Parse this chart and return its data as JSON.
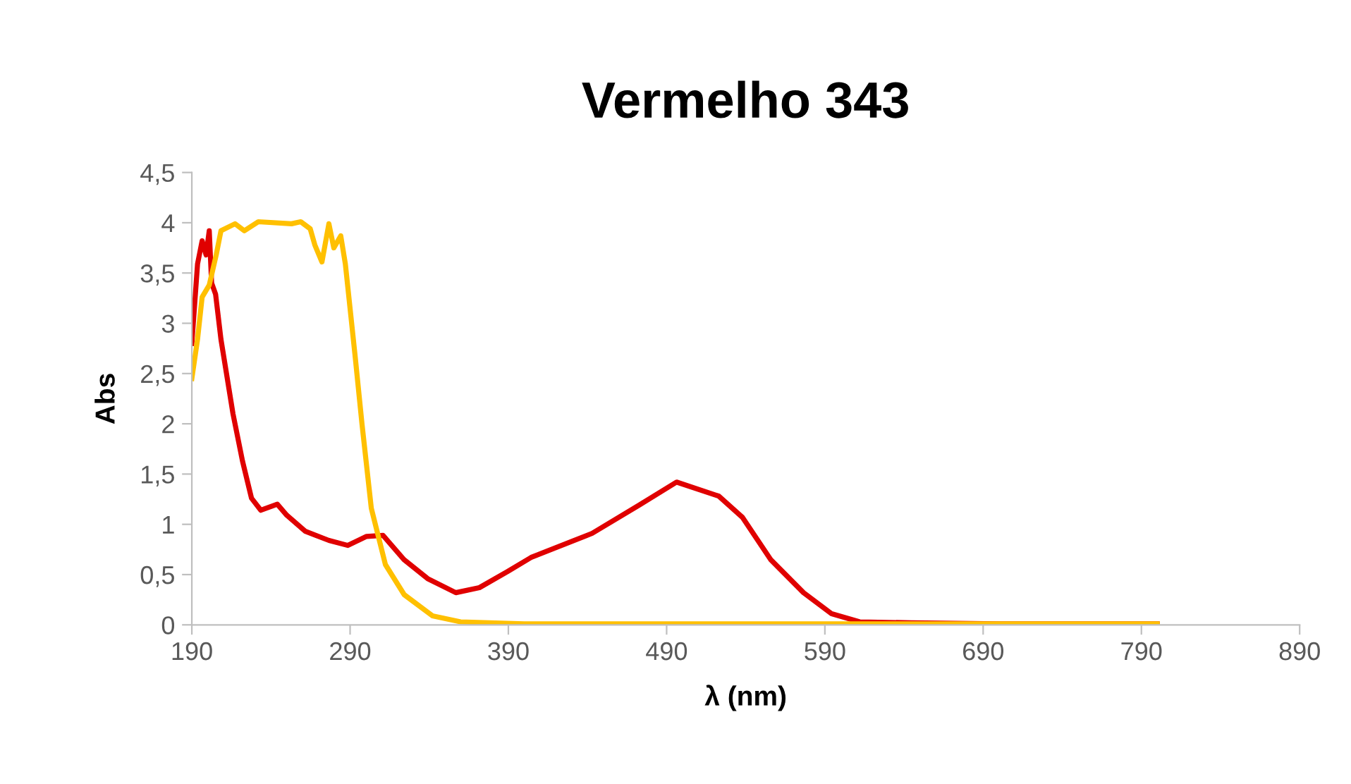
{
  "chart_data": {
    "type": "line",
    "title": "Vermelho 343",
    "xlabel": "λ (nm)",
    "ylabel": "Abs",
    "xlim": [
      190,
      890
    ],
    "xticks": [
      190,
      290,
      390,
      490,
      590,
      690,
      790,
      890
    ],
    "ylim": [
      0,
      4.5
    ],
    "yticks": [
      {
        "value": 0,
        "label": "0"
      },
      {
        "value": 0.5,
        "label": "0,5"
      },
      {
        "value": 1,
        "label": "1"
      },
      {
        "value": 1.5,
        "label": "1,5"
      },
      {
        "value": 2,
        "label": "2"
      },
      {
        "value": 2.5,
        "label": "2,5"
      },
      {
        "value": 3,
        "label": "3"
      },
      {
        "value": 3.5,
        "label": "3,5"
      },
      {
        "value": 4,
        "label": "4"
      },
      {
        "value": 4.5,
        "label": "4,5"
      }
    ],
    "grid": false,
    "marker": "none",
    "line_style": "solid",
    "series": [
      {
        "color": "#e00000",
        "x": [
          190,
          193.6,
          196.5,
          199,
          201,
          202.5,
          205,
          208.4,
          216,
          222,
          227.7,
          233.6,
          244,
          250,
          261.8,
          276.6,
          288.6,
          300.4,
          310.8,
          324,
          339,
          356.8,
          371.7,
          389.5,
          404.3,
          442.9,
          472.5,
          496.3,
          523,
          537.9,
          555.7,
          576.5,
          594.3,
          612,
          644.7,
          700,
          800
        ],
        "values": [
          2.8,
          3.59,
          3.82,
          3.68,
          3.92,
          3.4,
          3.29,
          2.84,
          2.1,
          1.63,
          1.26,
          1.14,
          1.2,
          1.09,
          0.93,
          0.84,
          0.79,
          0.88,
          0.89,
          0.65,
          0.46,
          0.32,
          0.37,
          0.53,
          0.67,
          0.91,
          1.19,
          1.42,
          1.28,
          1.07,
          0.65,
          0.32,
          0.11,
          0.03,
          0.02,
          0.01,
          0.01
        ]
      },
      {
        "color": "#ffc000",
        "x": [
          190,
          193.6,
          196.5,
          201,
          205.4,
          208.4,
          217.3,
          223.2,
          232,
          253,
          258.8,
          264.8,
          267.7,
          272.2,
          276.6,
          279.7,
          284.1,
          287,
          293,
          297.5,
          303.4,
          312.3,
          324.2,
          342,
          359.8,
          400,
          800
        ],
        "values": [
          2.45,
          2.84,
          3.26,
          3.38,
          3.68,
          3.92,
          3.99,
          3.92,
          4.01,
          3.99,
          4.01,
          3.94,
          3.78,
          3.61,
          3.99,
          3.75,
          3.87,
          3.59,
          2.7,
          2.0,
          1.16,
          0.6,
          0.3,
          0.09,
          0.03,
          0.01,
          0.01
        ]
      }
    ]
  }
}
